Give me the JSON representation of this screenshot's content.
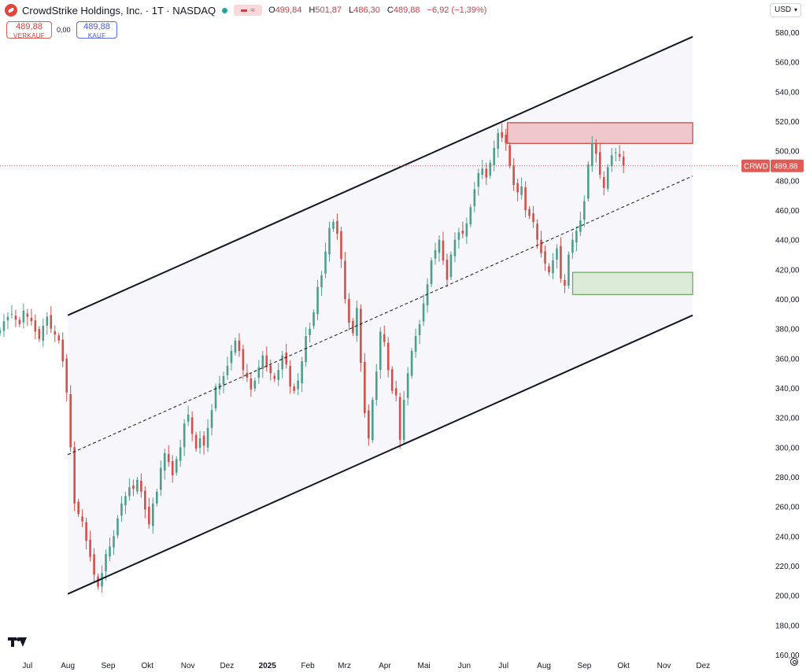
{
  "header": {
    "title": "CrowdStrike Holdings, Inc. · 1T · NASDAQ",
    "pill_glyph": "≈",
    "ohlc": [
      {
        "k": "O",
        "v": "499,84"
      },
      {
        "k": "H",
        "v": "501,87"
      },
      {
        "k": "L",
        "v": "486,30"
      },
      {
        "k": "C",
        "v": "489,88"
      },
      {
        "k": "",
        "v": "−6,92 (−1,39%)"
      }
    ]
  },
  "trade": {
    "sell_price": "489,88",
    "sell_label": "VERKAUF",
    "spread": "0,00",
    "buy_price": "489,88",
    "buy_label": "KAUF"
  },
  "currency": "USD",
  "colors": {
    "up": "#4e9e8c",
    "down": "#d1514a",
    "channel_fill": "#f7f6fb",
    "resistance_fill": "#f0c8cb",
    "resistance_border": "#c9403f",
    "support_fill": "#dcead8",
    "support_border": "#6aa560",
    "price_line": "#e05b56"
  },
  "chart_data": {
    "type": "candlestick",
    "symbol": "CRWD",
    "last_price": 489.88,
    "last_price_label": "489,88",
    "ylim": [
      160,
      580
    ],
    "y_ticks": [
      160,
      180,
      200,
      220,
      240,
      260,
      280,
      300,
      320,
      340,
      360,
      380,
      400,
      420,
      440,
      460,
      480,
      500,
      520,
      540,
      560,
      580
    ],
    "y_tick_labels": [
      "160,00",
      "180,00",
      "200,00",
      "220,00",
      "240,00",
      "260,00",
      "280,00",
      "300,00",
      "320,00",
      "340,00",
      "360,00",
      "380,00",
      "400,00",
      "420,00",
      "440,00",
      "460,00",
      "480,00",
      "500,00",
      "520,00",
      "540,00",
      "560,00",
      "580,00"
    ],
    "x_labels": [
      "Jul",
      "Aug",
      "Sep",
      "Okt",
      "Nov",
      "Dez",
      "2025",
      "Feb",
      "Mrz",
      "Apr",
      "Mai",
      "Jun",
      "Jul",
      "Aug",
      "Sep",
      "Okt",
      "Nov",
      "Dez"
    ],
    "x_label_days": [
      0,
      31,
      62,
      92,
      123,
      153,
      184,
      215,
      243,
      274,
      304,
      335,
      365,
      396,
      427,
      457,
      488,
      518
    ],
    "x_range_days": [
      -21,
      545
    ],
    "x_axis_note": "days since 2024-07-01",
    "closes": [
      379,
      385,
      388,
      390,
      386,
      383,
      392,
      388,
      385,
      378,
      373,
      382,
      388,
      380,
      376,
      372,
      358,
      337,
      300,
      262,
      255,
      250,
      237,
      226,
      214,
      206,
      215,
      228,
      233,
      240,
      252,
      262,
      267,
      273,
      272,
      278,
      270,
      258,
      248,
      262,
      270,
      286,
      296,
      290,
      281,
      292,
      300,
      316,
      322,
      309,
      299,
      306,
      301,
      313,
      325,
      341,
      343,
      348,
      355,
      365,
      372,
      365,
      352,
      347,
      339,
      345,
      354,
      362,
      354,
      350,
      346,
      352,
      362,
      356,
      341,
      338,
      345,
      358,
      375,
      380,
      391,
      408,
      416,
      432,
      448,
      452,
      444,
      427,
      400,
      384,
      377,
      394,
      357,
      323,
      306,
      332,
      351,
      378,
      371,
      352,
      338,
      335,
      305,
      332,
      350,
      365,
      375,
      383,
      397,
      410,
      426,
      433,
      440,
      426,
      413,
      430,
      440,
      445,
      444,
      451,
      462,
      474,
      485,
      488,
      482,
      492,
      502,
      512,
      509,
      505,
      490,
      477,
      472,
      476,
      460,
      456,
      452,
      440,
      431,
      424,
      418,
      426,
      434,
      414,
      409,
      430,
      440,
      446,
      453,
      466,
      491,
      505,
      498,
      484,
      475,
      489,
      497,
      499,
      496,
      490
    ],
    "channel": {
      "upper": [
        {
          "day": 31,
          "value": 389
        },
        {
          "day": 510,
          "value": 577
        }
      ],
      "lower": [
        {
          "day": 31,
          "value": 201
        },
        {
          "day": 510,
          "value": 389
        }
      ],
      "mid": [
        {
          "day": 31,
          "value": 295
        },
        {
          "day": 510,
          "value": 483
        }
      ]
    },
    "zones": [
      {
        "name": "resistance",
        "day_start": 368,
        "day_end": 510,
        "low": 505,
        "high": 519
      },
      {
        "name": "support",
        "day_start": 418,
        "day_end": 510,
        "low": 403,
        "high": 418
      }
    ]
  }
}
